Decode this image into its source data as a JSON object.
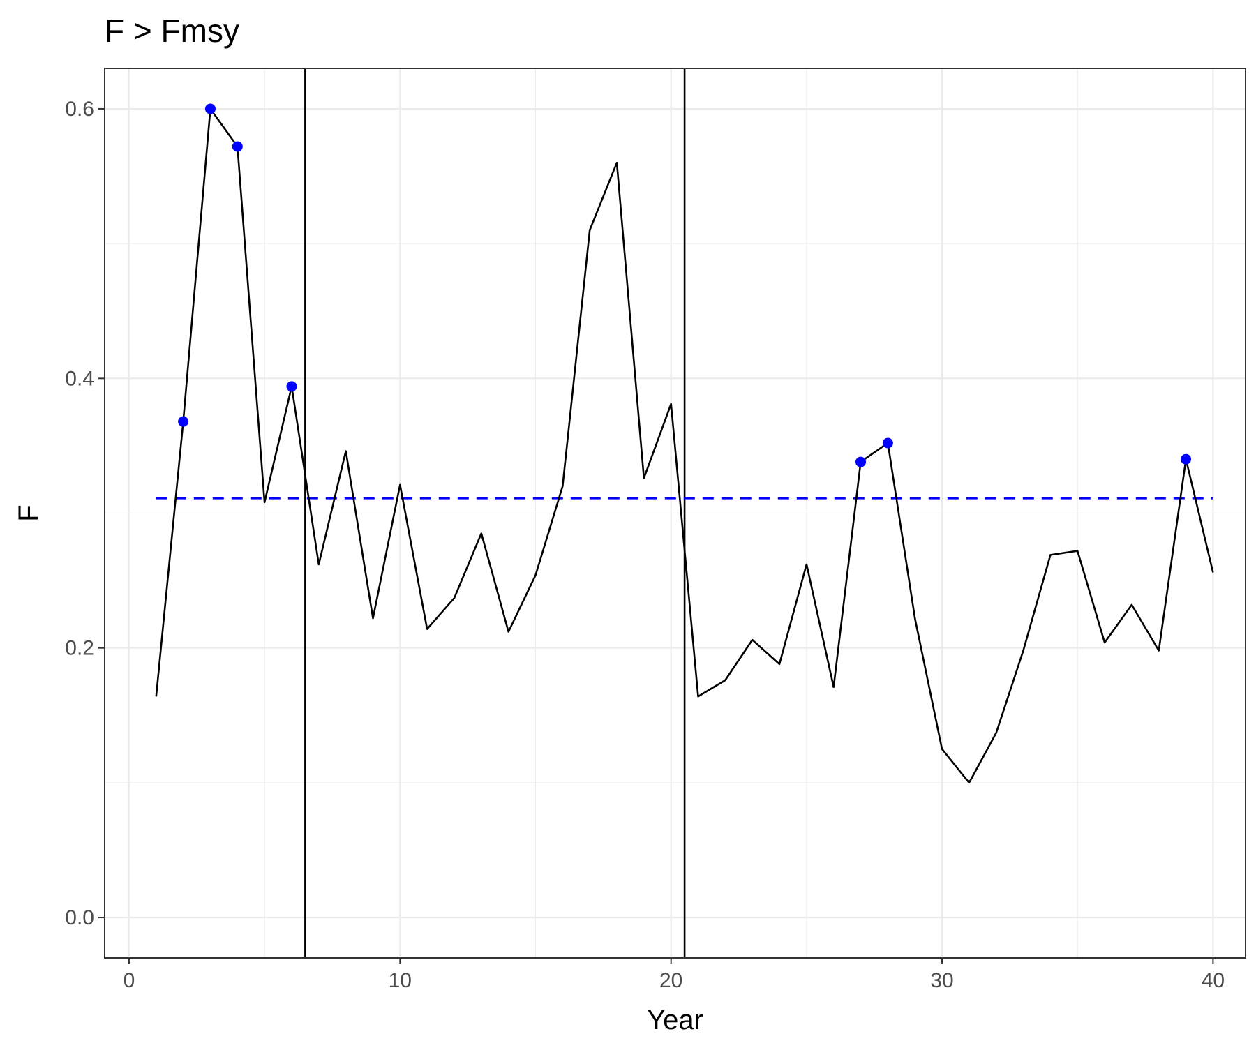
{
  "chart_data": {
    "type": "line",
    "title": "F > Fmsy",
    "xlabel": "Year",
    "ylabel": "F",
    "xlim": [
      -0.9,
      41.2
    ],
    "ylim": [
      -0.03,
      0.63
    ],
    "x_ticks": [
      0,
      10,
      20,
      30,
      40
    ],
    "x_tick_labels": [
      "0",
      "10",
      "20",
      "30",
      "40"
    ],
    "y_ticks": [
      0.0,
      0.2,
      0.4,
      0.6
    ],
    "y_tick_labels": [
      "0.0",
      "0.2",
      "0.4",
      "0.6"
    ],
    "grid": true,
    "series": [
      {
        "x": [
          1,
          2,
          3,
          4,
          5,
          6,
          7,
          8,
          9,
          10,
          11,
          12,
          13,
          14,
          15,
          16,
          17,
          18,
          19,
          20,
          21,
          22,
          23,
          24,
          25,
          26,
          27,
          28,
          29,
          30,
          31,
          32,
          33,
          34,
          35,
          36,
          37,
          38,
          39,
          40
        ],
        "values": [
          0.164,
          0.368,
          0.6,
          0.572,
          0.308,
          0.394,
          0.262,
          0.346,
          0.222,
          0.321,
          0.214,
          0.237,
          0.285,
          0.212,
          0.254,
          0.32,
          0.51,
          0.56,
          0.326,
          0.381,
          0.164,
          0.176,
          0.206,
          0.188,
          0.262,
          0.171,
          0.338,
          0.352,
          0.222,
          0.125,
          0.1,
          0.137,
          0.198,
          0.269,
          0.272,
          0.204,
          0.232,
          0.198,
          0.34,
          0.256
        ],
        "color": "#000000"
      }
    ],
    "highlighted_points": {
      "color": "#0000ff",
      "x": [
        2,
        3,
        4,
        6,
        27,
        28,
        39
      ],
      "values": [
        0.368,
        0.6,
        0.572,
        0.394,
        0.338,
        0.352,
        0.34
      ]
    },
    "reference_line": {
      "orientation": "horizontal",
      "value": 0.311,
      "x_range": [
        1,
        40
      ],
      "style": "dashed",
      "color": "#0000ff"
    },
    "vertical_lines": [
      {
        "value": 6.5,
        "color": "#000000"
      },
      {
        "value": 20.5,
        "color": "#000000"
      }
    ]
  }
}
